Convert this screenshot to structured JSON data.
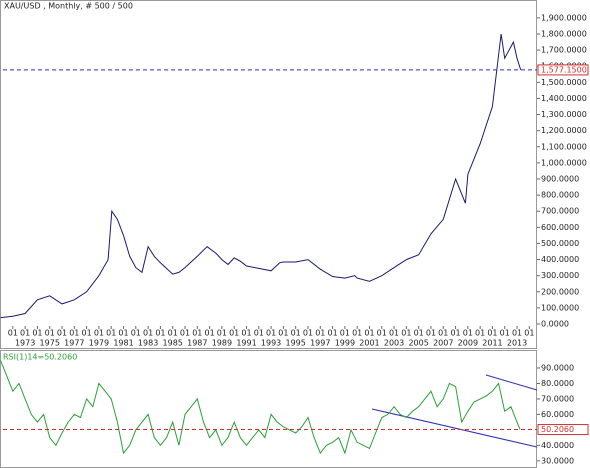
{
  "chart_data": [
    {
      "type": "line",
      "title": "XAU/USD , Monthly, # 500 / 500",
      "xlim": [
        1971.2,
        2014.46
      ],
      "xticks": [
        {
          "value": 1972,
          "label": "01"
        },
        {
          "value": 1973,
          "label": "01"
        },
        {
          "value": 1974,
          "label": "01"
        },
        {
          "value": 1975,
          "label": "01"
        },
        {
          "value": 1976,
          "label": "01"
        },
        {
          "value": 1977,
          "label": "01"
        },
        {
          "value": 1978,
          "label": "01"
        },
        {
          "value": 1979,
          "label": "01"
        },
        {
          "value": 1980,
          "label": "01"
        },
        {
          "value": 1981,
          "label": "01"
        },
        {
          "value": 1982,
          "label": "01"
        },
        {
          "value": 1983,
          "label": "01"
        },
        {
          "value": 1984,
          "label": "01"
        },
        {
          "value": 1985,
          "label": "01"
        },
        {
          "value": 1986,
          "label": "01"
        },
        {
          "value": 1987,
          "label": "01"
        },
        {
          "value": 1988,
          "label": "01"
        },
        {
          "value": 1989,
          "label": "01"
        },
        {
          "value": 1990,
          "label": "01"
        },
        {
          "value": 1991,
          "label": "01"
        },
        {
          "value": 1992,
          "label": "01"
        },
        {
          "value": 1993,
          "label": "01"
        },
        {
          "value": 1994,
          "label": "01"
        },
        {
          "value": 1995,
          "label": "01"
        },
        {
          "value": 1996,
          "label": "01"
        },
        {
          "value": 1997,
          "label": "01"
        },
        {
          "value": 1998,
          "label": "01"
        },
        {
          "value": 1999,
          "label": "01"
        },
        {
          "value": 2000,
          "label": "01"
        },
        {
          "value": 2001,
          "label": "01"
        },
        {
          "value": 2002,
          "label": "01"
        },
        {
          "value": 2003,
          "label": "01"
        },
        {
          "value": 2004,
          "label": "01"
        },
        {
          "value": 2005,
          "label": "01"
        },
        {
          "value": 2006,
          "label": "01"
        },
        {
          "value": 2007,
          "label": "01"
        },
        {
          "value": 2008,
          "label": "01"
        },
        {
          "value": 2009,
          "label": "01"
        },
        {
          "value": 2010,
          "label": "01"
        },
        {
          "value": 2011,
          "label": "01"
        },
        {
          "value": 2012,
          "label": "01"
        },
        {
          "value": 2013,
          "label": "01"
        },
        {
          "value": 2014,
          "label": "01"
        }
      ],
      "year_labels": [
        1973,
        1975,
        1977,
        1979,
        1981,
        1983,
        1985,
        1987,
        1989,
        1991,
        1993,
        1995,
        1997,
        1999,
        2001,
        2003,
        2005,
        2007,
        2009,
        2011,
        2013
      ],
      "ylim": [
        0,
        1980
      ],
      "yticks": [
        {
          "value": 0,
          "label": "0.0000"
        },
        {
          "value": 100,
          "label": "100.0000"
        },
        {
          "value": 200,
          "label": "200.0000"
        },
        {
          "value": 300,
          "label": "300.0000"
        },
        {
          "value": 400,
          "label": "400.0000"
        },
        {
          "value": 500,
          "label": "500.0000"
        },
        {
          "value": 600,
          "label": "600.0000"
        },
        {
          "value": 700,
          "label": "700.0000"
        },
        {
          "value": 800,
          "label": "800.0000"
        },
        {
          "value": 900,
          "label": "900.0000"
        },
        {
          "value": 1000,
          "label": "1,000.0000"
        },
        {
          "value": 1100,
          "label": "1,100.0000"
        },
        {
          "value": 1200,
          "label": "1,200.0000"
        },
        {
          "value": 1300,
          "label": "1,300.0000"
        },
        {
          "value": 1400,
          "label": "1,400.0000"
        },
        {
          "value": 1500,
          "label": "1,500.0000"
        },
        {
          "value": 1600,
          "label": "1,600.0000"
        },
        {
          "value": 1700,
          "label": "1,700.0000"
        },
        {
          "value": 1800,
          "label": "1,800.0000"
        },
        {
          "value": 1900,
          "label": "1,900.0000"
        }
      ],
      "x": [
        1971.0,
        1972.0,
        1973.0,
        1974.0,
        1975.0,
        1976.0,
        1977.0,
        1978.0,
        1979.0,
        1979.75,
        1980.05,
        1980.5,
        1981.0,
        1981.5,
        1982.0,
        1982.5,
        1983.0,
        1983.5,
        1984.0,
        1985.0,
        1985.5,
        1986.0,
        1987.0,
        1987.8,
        1988.5,
        1989.0,
        1989.5,
        1990.0,
        1990.5,
        1991.0,
        1992.0,
        1993.0,
        1993.7,
        1994.0,
        1995.0,
        1996.0,
        1997.0,
        1998.0,
        1999.0,
        1999.8,
        2000.0,
        2001.0,
        2002.0,
        2003.0,
        2004.0,
        2005.0,
        2006.0,
        2007.0,
        2008.0,
        2008.8,
        2009.0,
        2010.0,
        2011.0,
        2011.7,
        2012.0,
        2012.7,
        2013.0,
        2013.3
      ],
      "series": [
        {
          "name": "XAU/USD",
          "color": "#1a1a6e",
          "values": [
            40,
            48,
            65,
            150,
            175,
            125,
            150,
            200,
            300,
            400,
            700,
            650,
            550,
            420,
            350,
            320,
            480,
            420,
            380,
            310,
            320,
            350,
            420,
            480,
            440,
            400,
            370,
            410,
            390,
            360,
            345,
            330,
            380,
            385,
            385,
            400,
            340,
            295,
            285,
            300,
            285,
            265,
            300,
            350,
            400,
            430,
            560,
            650,
            900,
            750,
            930,
            1120,
            1350,
            1800,
            1650,
            1750,
            1650,
            1577.15
          ]
        }
      ],
      "last_price": {
        "value": 1577.15,
        "label": "1,577.1500"
      }
    },
    {
      "type": "line",
      "title": "RSI(1)14=50.2060",
      "xlim": [
        1971.2,
        2014.46
      ],
      "ylim": [
        26,
        101
      ],
      "yticks": [
        {
          "value": 30,
          "label": "30.0000"
        },
        {
          "value": 40,
          "label": "40.0000"
        },
        {
          "value": 60,
          "label": "60.0000"
        },
        {
          "value": 70,
          "label": "70.0000"
        },
        {
          "value": 80,
          "label": "80.0000"
        },
        {
          "value": 90,
          "label": "90.0000"
        }
      ],
      "x": [
        1971,
        1971.5,
        1972,
        1972.5,
        1973,
        1973.5,
        1974,
        1974.5,
        1975,
        1975.5,
        1976,
        1976.5,
        1977,
        1977.5,
        1978,
        1978.5,
        1979,
        1979.5,
        1980,
        1980.5,
        1981,
        1981.5,
        1982,
        1982.5,
        1983,
        1983.5,
        1984,
        1984.5,
        1985,
        1985.5,
        1986,
        1986.5,
        1987,
        1987.5,
        1988,
        1988.5,
        1989,
        1989.5,
        1990,
        1990.5,
        1991,
        1991.5,
        1992,
        1992.5,
        1993,
        1993.5,
        1994,
        1994.5,
        1995,
        1995.5,
        1996,
        1996.5,
        1997,
        1997.5,
        1998,
        1998.5,
        1999,
        1999.5,
        2000,
        2000.5,
        2001,
        2001.5,
        2002,
        2002.5,
        2003,
        2003.5,
        2004,
        2004.5,
        2005,
        2005.5,
        2006,
        2006.5,
        2007,
        2007.5,
        2008,
        2008.5,
        2009,
        2009.5,
        2010,
        2010.5,
        2011,
        2011.5,
        2012,
        2012.5,
        2013,
        2013.25
      ],
      "series": [
        {
          "name": "RSI",
          "color": "#2e9e3a",
          "values": [
            95,
            85,
            75,
            80,
            70,
            60,
            55,
            60,
            45,
            40,
            48,
            55,
            60,
            58,
            70,
            65,
            80,
            75,
            70,
            55,
            35,
            40,
            50,
            55,
            60,
            45,
            40,
            45,
            55,
            40,
            60,
            65,
            70,
            55,
            45,
            50,
            40,
            45,
            55,
            45,
            40,
            45,
            50,
            45,
            60,
            55,
            52,
            50,
            48,
            52,
            58,
            45,
            35,
            40,
            42,
            45,
            35,
            50,
            42,
            40,
            38,
            48,
            58,
            60,
            65,
            60,
            58,
            62,
            65,
            70,
            75,
            65,
            70,
            80,
            78,
            55,
            62,
            68,
            70,
            72,
            75,
            80,
            62,
            65,
            55,
            50.206
          ]
        }
      ],
      "last_value": {
        "value": 50.206,
        "label": "50.2060"
      }
    }
  ]
}
